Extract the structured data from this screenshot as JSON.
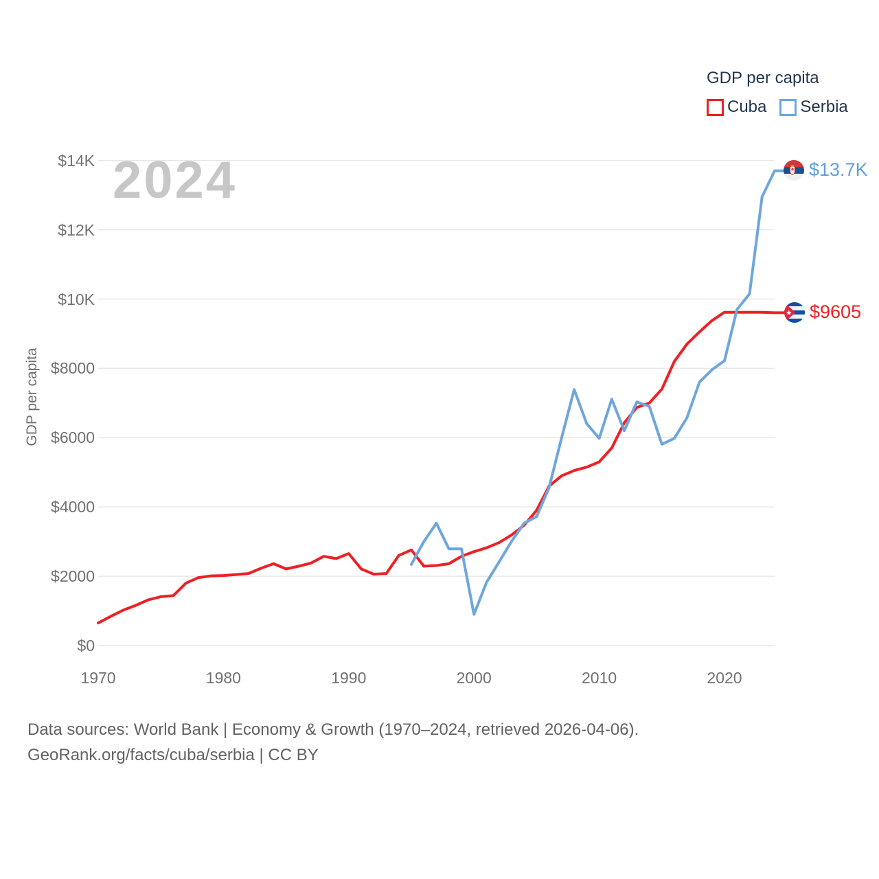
{
  "watermark": "2024",
  "legend": {
    "title": "GDP per capita",
    "items": [
      {
        "label": "Cuba",
        "color": "#ed2024"
      },
      {
        "label": "Serbia",
        "color": "#6fa6db"
      }
    ]
  },
  "end_labels": {
    "serbia": {
      "label": "$13.7K",
      "color": "#5f9de0"
    },
    "cuba": {
      "label": "$9605",
      "color": "#ed2024"
    }
  },
  "footer": {
    "line1": "Data sources: World Bank | Economy & Growth (1970–2024, retrieved 2026-04-06).",
    "line2": "GeoRank.org/facts/cuba/serbia | CC BY"
  },
  "chart_data": {
    "type": "line",
    "title": "GDP per capita",
    "xlabel": "",
    "ylabel": "GDP per capita",
    "xlim": [
      1970,
      2024
    ],
    "ylim": [
      0,
      14000
    ],
    "grid": "horizontal",
    "legend_position": "top-right",
    "x_ticks": [
      1970,
      1980,
      1990,
      2000,
      2010,
      2020
    ],
    "y_ticks": [
      {
        "value": 0,
        "label": "$0"
      },
      {
        "value": 2000,
        "label": "$2000"
      },
      {
        "value": 4000,
        "label": "$4000"
      },
      {
        "value": 6000,
        "label": "$6000"
      },
      {
        "value": 8000,
        "label": "$8000"
      },
      {
        "value": 10000,
        "label": "$10K"
      },
      {
        "value": 12000,
        "label": "$12K"
      },
      {
        "value": 14000,
        "label": "$14K"
      }
    ],
    "series": [
      {
        "name": "Cuba",
        "color": "#ed2024",
        "start_year": 1970,
        "end_year": 2024,
        "end_label": "$9605",
        "final_value": 9605,
        "values": [
          650,
          840,
          1020,
          1160,
          1320,
          1410,
          1440,
          1800,
          1960,
          2010,
          2020,
          2050,
          2080,
          2230,
          2360,
          2210,
          2290,
          2380,
          2575,
          2510,
          2655,
          2210,
          2060,
          2080,
          2600,
          2760,
          2290,
          2310,
          2360,
          2575,
          2710,
          2820,
          2970,
          3190,
          3470,
          3900,
          4600,
          4900,
          5050,
          5150,
          5300,
          5700,
          6430,
          6870,
          7000,
          7400,
          8200,
          8700,
          9050,
          9380,
          9620,
          9620,
          9620,
          9620,
          9605
        ]
      },
      {
        "name": "Serbia",
        "color": "#6fa6db",
        "start_year": 1995,
        "end_year": 2024,
        "end_label": "$13.7K",
        "final_value": 13700,
        "values": [
          2340,
          3000,
          3530,
          2790,
          2790,
          900,
          1820,
          2410,
          3005,
          3530,
          3720,
          4560,
          6000,
          7390,
          6400,
          5980,
          7110,
          6200,
          7030,
          6900,
          5810,
          5980,
          6570,
          7600,
          7960,
          8220,
          9700,
          10150,
          12950,
          13700
        ]
      }
    ]
  }
}
